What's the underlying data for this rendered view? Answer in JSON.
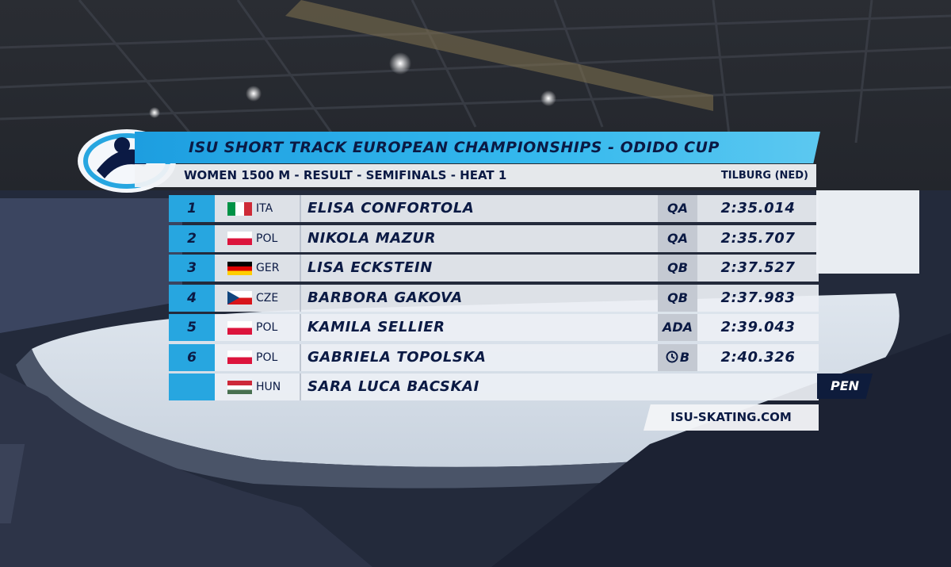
{
  "header": {
    "title": "ISU SHORT TRACK EUROPEAN CHAMPIONSHIPS - ODIDO CUP",
    "subtitle": "WOMEN 1500 M - RESULT - SEMIFINALS - HEAT 1",
    "location": "TILBURG (NED)"
  },
  "rows": [
    {
      "rank": "1",
      "country": "ITA",
      "name": "ELISA CONFORTOLA",
      "qualification": "QA",
      "time": "2:35.014"
    },
    {
      "rank": "2",
      "country": "POL",
      "name": "NIKOLA MAZUR",
      "qualification": "QA",
      "time": "2:35.707"
    },
    {
      "rank": "3",
      "country": "GER",
      "name": "LISA ECKSTEIN",
      "qualification": "QB",
      "time": "2:37.527"
    },
    {
      "rank": "4",
      "country": "CZE",
      "name": "BARBORA GAKOVA",
      "qualification": "QB",
      "time": "2:37.983"
    },
    {
      "rank": "5",
      "country": "POL",
      "name": "KAMILA SELLIER",
      "qualification": "ADA",
      "time": "2:39.043"
    },
    {
      "rank": "6",
      "country": "POL",
      "name": "GABRIELA TOPOLSKA",
      "qualification": "B",
      "time": "2:40.326"
    },
    {
      "country": "HUN",
      "name": "SARA LUCA BACSKAI",
      "status": "PEN"
    }
  ],
  "footer": {
    "url": "ISU-SKATING.COM"
  }
}
